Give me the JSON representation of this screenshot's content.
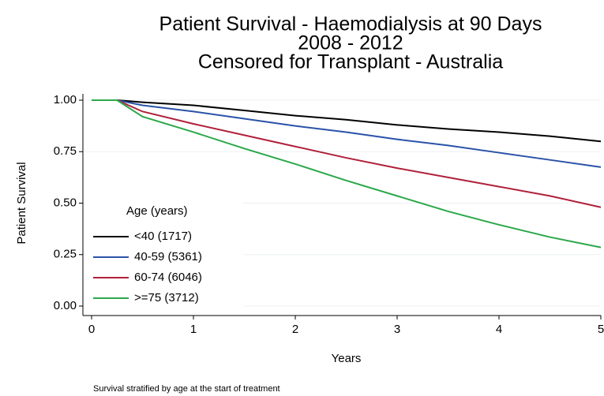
{
  "chart_data": {
    "type": "line",
    "title": [
      "Patient Survival - Haemodialysis at 90 Days",
      "2008 - 2012",
      "Censored for Transplant - Australia"
    ],
    "x_label": "Years",
    "y_label": "Patient Survival",
    "note": "Survival stratified by age at the start of treatment",
    "legend_title": "Age (years)",
    "legend_position": "lower left",
    "x": [
      0,
      0.25,
      0.5,
      1,
      1.5,
      2,
      2.5,
      3,
      3.5,
      4,
      4.5,
      5
    ],
    "series": [
      {
        "name": "<40 (1717)",
        "color": "#000000",
        "values": [
          1,
          1,
          0.99,
          0.975,
          0.95,
          0.925,
          0.905,
          0.88,
          0.86,
          0.845,
          0.825,
          0.8
        ]
      },
      {
        "name": "40-59 (5361)",
        "color": "#2a52a8",
        "values": [
          1,
          1,
          0.975,
          0.945,
          0.91,
          0.875,
          0.845,
          0.81,
          0.78,
          0.745,
          0.71,
          0.675
        ]
      },
      {
        "name": "60-74 (6046)",
        "color": "#b0203a",
        "values": [
          1,
          1,
          0.945,
          0.885,
          0.83,
          0.775,
          0.72,
          0.67,
          0.625,
          0.58,
          0.535,
          0.48
        ]
      },
      {
        "name": ">=75 (3712)",
        "color": "#2aa84a",
        "values": [
          1,
          1,
          0.92,
          0.845,
          0.765,
          0.69,
          0.61,
          0.535,
          0.46,
          0.395,
          0.335,
          0.285
        ]
      }
    ],
    "xlim": [
      0,
      5
    ],
    "xticks": [
      0,
      1,
      2,
      3,
      4,
      5
    ],
    "ylim": [
      0,
      1
    ],
    "yticks": [
      {
        "value": 0,
        "label": "0.00"
      },
      {
        "value": 0.25,
        "label": "0.25"
      },
      {
        "value": 0.5,
        "label": "0.50"
      },
      {
        "value": 0.75,
        "label": "0.75"
      },
      {
        "value": 1,
        "label": "1.00"
      }
    ],
    "grid": true
  }
}
